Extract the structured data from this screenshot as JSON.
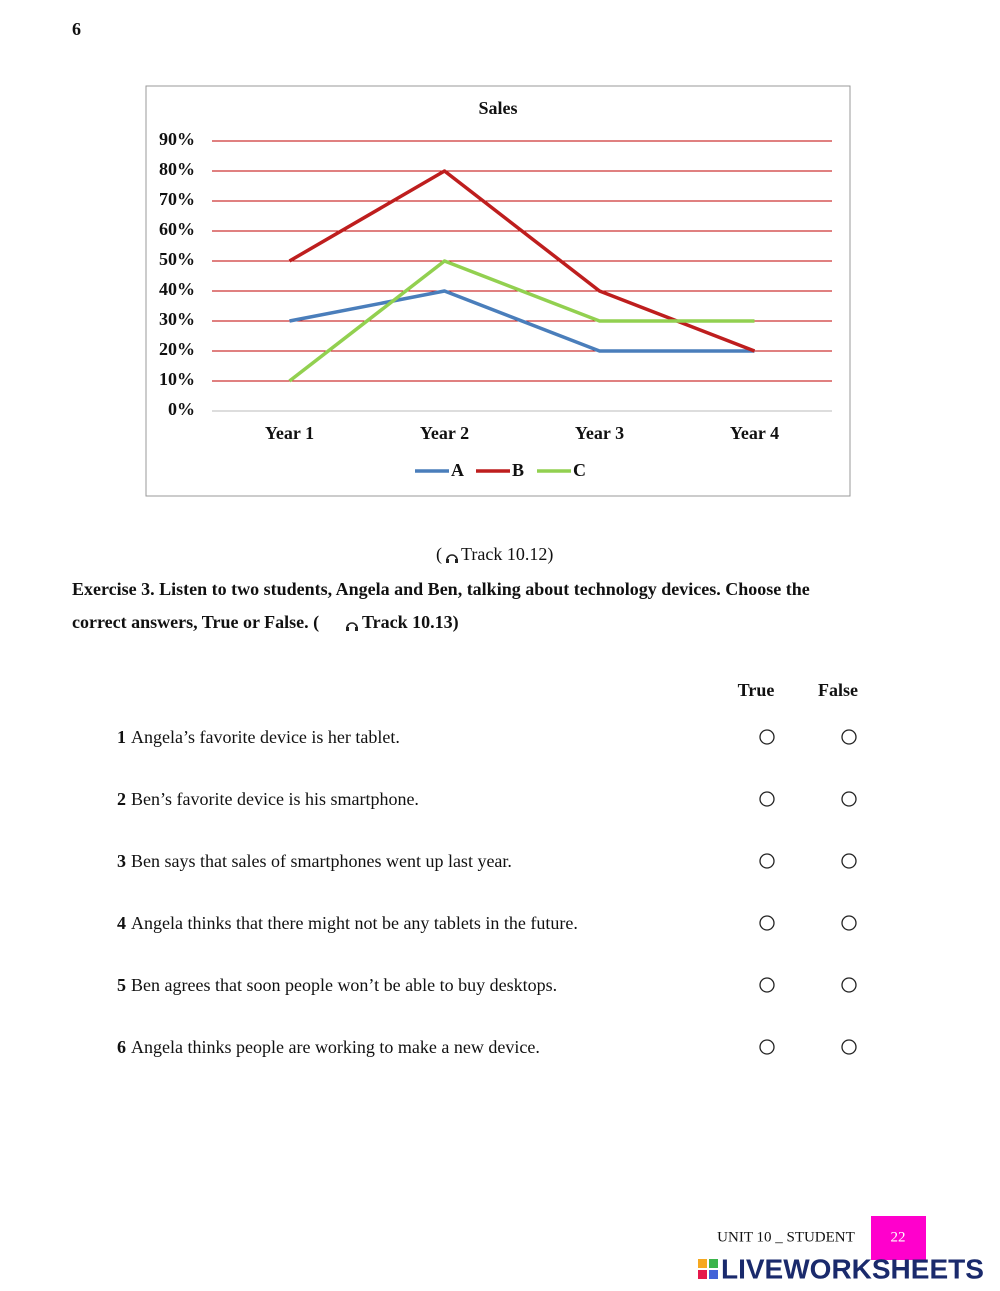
{
  "page_number": "6",
  "chart_data": {
    "type": "line",
    "title": "Sales",
    "categories": [
      "Year 1",
      "Year 2",
      "Year 3",
      "Year 4"
    ],
    "series": [
      {
        "name": "A",
        "color": "#4a7ebb",
        "values": [
          30,
          40,
          20,
          20
        ]
      },
      {
        "name": "B",
        "color": "#be1e1e",
        "values": [
          50,
          80,
          40,
          20
        ]
      },
      {
        "name": "C",
        "color": "#92d050",
        "values": [
          10,
          50,
          30,
          30
        ]
      }
    ],
    "ylim": [
      0,
      90
    ],
    "yticks": [
      {
        "value": 0,
        "label": "0%"
      },
      {
        "value": 10,
        "label": "10%"
      },
      {
        "value": 20,
        "label": "20%"
      },
      {
        "value": 30,
        "label": "30%"
      },
      {
        "value": 40,
        "label": "40%"
      },
      {
        "value": 50,
        "label": "50%"
      },
      {
        "value": 60,
        "label": "60%"
      },
      {
        "value": 70,
        "label": "70%"
      },
      {
        "value": 80,
        "label": "80%"
      },
      {
        "value": 90,
        "label": "90%"
      }
    ],
    "grid": true,
    "legend": "bottom"
  },
  "track_note": {
    "open": "(",
    "text": "Track 10.12)"
  },
  "exercise": {
    "instruction_line1": "Exercise 3. Listen to two students, Angela and Ben, talking about technology devices. Choose the",
    "instruction_line2": "correct answers, True or False. (",
    "track": "Track 10.13)"
  },
  "columns": [
    "True",
    "False"
  ],
  "items": [
    {
      "number": "1",
      "text": "Angela’s favorite device is her tablet."
    },
    {
      "number": "2",
      "text": "Ben’s favorite device is his smartphone."
    },
    {
      "number": "3",
      "text": "Ben says that sales of smartphones went up last year."
    },
    {
      "number": "4",
      "text": "Angela thinks that there might not be any tablets in the future."
    },
    {
      "number": "5",
      "text": "Ben agrees that soon people won’t be able to buy desktops."
    },
    {
      "number": "6",
      "text": "Angela thinks people are working to make a new device."
    }
  ],
  "footer": {
    "unit": "UNIT 10 _ STUDENT",
    "page": "22",
    "brand": "LIVEWORKSHEETS"
  }
}
